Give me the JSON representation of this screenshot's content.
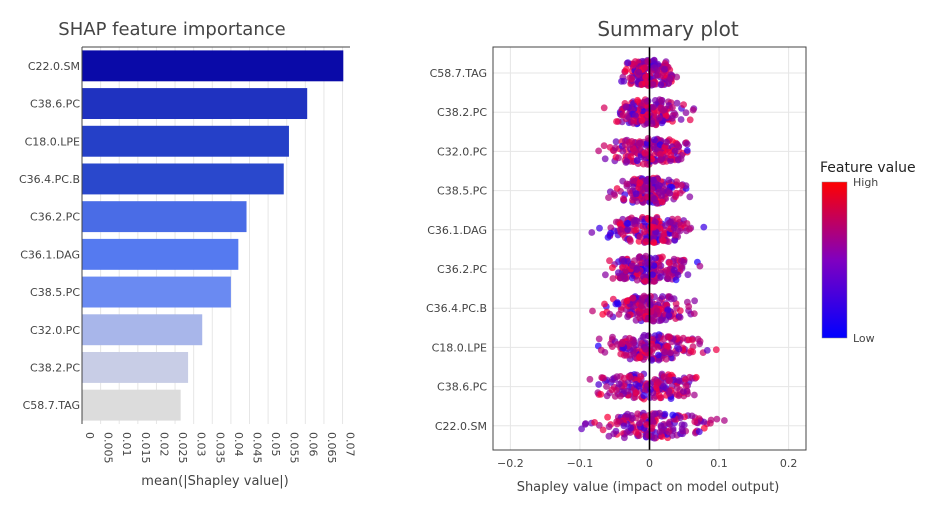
{
  "chart_data": [
    {
      "type": "bar",
      "orientation": "horizontal",
      "title": "SHAP feature importance",
      "xlabel": "mean(|Shapley value|)",
      "ylabel": "",
      "categories": [
        "C22.0.SM",
        "C38.6.PC",
        "C18.0.LPE",
        "C36.4.PC.B",
        "C36.2.PC",
        "C36.1.DAG",
        "C38.5.PC",
        "C32.0.PC",
        "C38.2.PC",
        "C58.7.TAG"
      ],
      "values": [
        0.0702,
        0.0605,
        0.0556,
        0.0542,
        0.0442,
        0.042,
        0.04,
        0.0323,
        0.0285,
        0.0265
      ],
      "colors": [
        "#0a0aa8",
        "#1f32c0",
        "#2540c8",
        "#2a48cc",
        "#4a6ce6",
        "#557af0",
        "#6a8af2",
        "#a8b6ea",
        "#c8cde6",
        "#dcdcdc"
      ],
      "xlim": [
        0,
        0.072
      ],
      "xticks": [
        "0",
        "0.005",
        "0.01",
        "0.015",
        "0.02",
        "0.025",
        "0.03",
        "0.035",
        "0.04",
        "0.045",
        "0.05",
        "0.055",
        "0.06",
        "0.065",
        "0.07"
      ],
      "grid": true
    },
    {
      "type": "scatter",
      "subtype": "beeswarm",
      "title": "Summary plot",
      "xlabel": "Shapley value (impact on model output)",
      "ylabel": "",
      "categories": [
        "C58.7.TAG",
        "C38.2.PC",
        "C32.0.PC",
        "C38.5.PC",
        "C36.1.DAG",
        "C36.2.PC",
        "C36.4.PC.B",
        "C18.0.LPE",
        "C38.6.PC",
        "C22.0.SM"
      ],
      "x_ranges": [
        [
          -0.09,
          0.09
        ],
        [
          -0.125,
          0.105
        ],
        [
          -0.1,
          0.165
        ],
        [
          -0.1,
          0.125
        ],
        [
          -0.145,
          0.12
        ],
        [
          -0.14,
          0.125
        ],
        [
          -0.13,
          0.125
        ],
        [
          -0.15,
          0.175
        ],
        [
          -0.175,
          0.152
        ],
        [
          -0.19,
          0.175
        ]
      ],
      "xlim": [
        -0.225,
        0.225
      ],
      "xticks": [
        "−0.2",
        "−0.1",
        "0",
        "0.1",
        "0.2"
      ],
      "xtick_values": [
        -0.2,
        -0.1,
        0,
        0.1,
        0.2
      ],
      "zero_line": 0,
      "grid": true,
      "colorbar": {
        "title": "Feature value",
        "high_label": "High",
        "low_label": "Low",
        "high_color": "#ff0000",
        "low_color": "#0000ff"
      }
    }
  ]
}
